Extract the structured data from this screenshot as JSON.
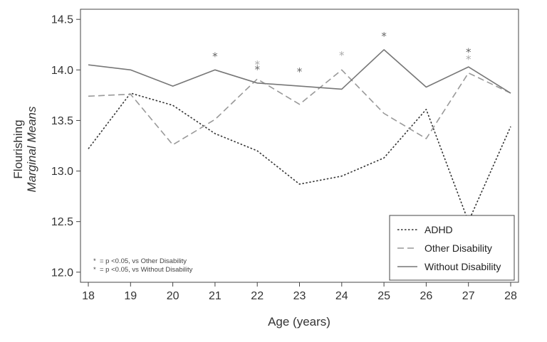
{
  "chart_data": {
    "type": "line",
    "xlabel": "Age (years)",
    "ylabel": "Flourishing",
    "ylabel_sub": "Marginal Means",
    "x": [
      18,
      19,
      20,
      21,
      22,
      23,
      24,
      25,
      26,
      27,
      28
    ],
    "xlim": [
      18,
      28
    ],
    "ylim": [
      11.9,
      14.6
    ],
    "yticks": [
      12.0,
      12.5,
      13.0,
      13.5,
      14.0,
      14.5
    ],
    "ytick_labels": [
      "12.0",
      "12.5",
      "13.0",
      "13.5",
      "14.0",
      "14.5"
    ],
    "series": [
      {
        "name": "ADHD",
        "style": "dotted",
        "color": "#333333",
        "values": [
          13.22,
          13.77,
          13.65,
          13.37,
          13.2,
          12.87,
          12.95,
          13.13,
          13.61,
          12.5,
          13.44
        ]
      },
      {
        "name": "Other Disability",
        "style": "dashed",
        "color": "#999999",
        "values": [
          13.74,
          13.76,
          13.26,
          13.51,
          13.91,
          13.66,
          14.0,
          13.57,
          13.32,
          13.97,
          13.77
        ]
      },
      {
        "name": "Without Disability",
        "style": "solid",
        "color": "#777777",
        "values": [
          14.05,
          14.0,
          13.84,
          14.0,
          13.87,
          13.84,
          13.81,
          14.2,
          13.83,
          14.03,
          13.77
        ]
      }
    ],
    "significance_markers": [
      {
        "x": 21,
        "y": 14.14,
        "kind": "without"
      },
      {
        "x": 22,
        "y": 14.06,
        "kind": "other"
      },
      {
        "x": 22,
        "y": 14.01,
        "kind": "without"
      },
      {
        "x": 23,
        "y": 13.99,
        "kind": "without"
      },
      {
        "x": 24,
        "y": 14.15,
        "kind": "other"
      },
      {
        "x": 25,
        "y": 14.34,
        "kind": "without"
      },
      {
        "x": 27,
        "y": 14.18,
        "kind": "without"
      },
      {
        "x": 27,
        "y": 14.11,
        "kind": "other"
      }
    ],
    "marker_symbol": "*",
    "marker_colors": {
      "other": "#aaaaaa",
      "without": "#666666"
    },
    "footnotes": [
      {
        "kind": "other",
        "text": "= p <0.05, vs Other Disability"
      },
      {
        "kind": "without",
        "text": "= p <0.05, vs Without Disability"
      }
    ],
    "legend_position": "bottom-right",
    "grid": false
  }
}
